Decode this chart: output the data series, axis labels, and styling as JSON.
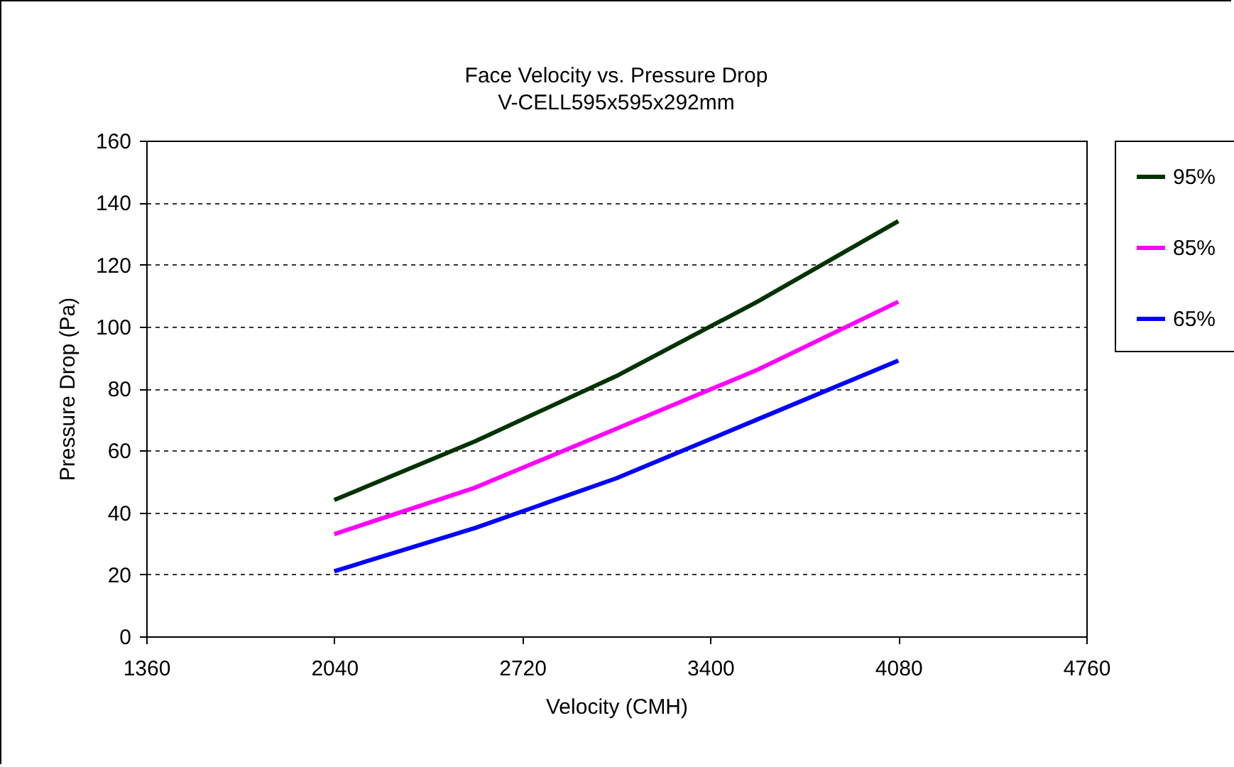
{
  "chart_data": {
    "type": "line",
    "title": "Face Velocity vs. Pressure Drop",
    "subtitle": "V-CELL595x595x292mm",
    "xlabel": "Velocity (CMH)",
    "ylabel": "Pressure Drop (Pa)",
    "x": [
      2040,
      2550,
      3060,
      3570,
      4080
    ],
    "series": [
      {
        "name": "95%",
        "color": "#003300",
        "values": [
          44,
          63,
          84,
          108,
          134
        ]
      },
      {
        "name": "85%",
        "color": "#ff00ff",
        "values": [
          33,
          48,
          67,
          86,
          108
        ]
      },
      {
        "name": "65%",
        "color": "#0000ff",
        "values": [
          21,
          35,
          51,
          70,
          89
        ]
      }
    ],
    "xlim": [
      1360,
      4760
    ],
    "xticks": [
      1360,
      2040,
      2720,
      3400,
      4080,
      4760
    ],
    "ylim": [
      0,
      160
    ],
    "yticks": [
      0,
      20,
      40,
      60,
      80,
      100,
      120,
      140,
      160
    ],
    "grid": "y",
    "legend": "right",
    "marker": "none",
    "line_style": "solid"
  }
}
